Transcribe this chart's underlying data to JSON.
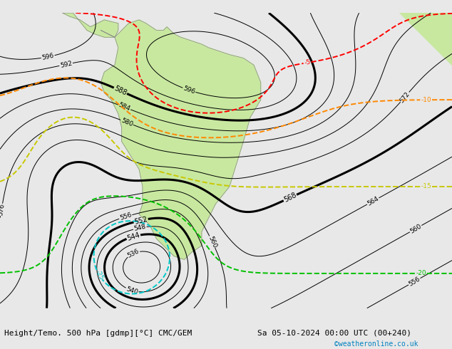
{
  "title_left": "Height/Temo. 500 hPa [gdmp][°C] CMC/GEM",
  "title_right": "Sa 05-10-2024 00:00 UTC (00+240)",
  "copyright": "©weatheronline.co.uk",
  "bg_color": "#e8e8e8",
  "land_color": "#c8e8a0",
  "text_color": "#000000",
  "copyright_color": "#0080c0",
  "bottom_bar_color": "#f0f0f0",
  "figure_width": 6.34,
  "figure_height": 4.9,
  "dpi": 100,
  "height_contour_color": "#000000",
  "temp_neg5_color": "#ff0000",
  "temp_neg10_color": "#ff8800",
  "temp_neg15_color": "#c8c800",
  "temp_neg20_color": "#00c000",
  "temp_neg25_color": "#00c8c8",
  "temp_neg30_color": "#0060ff",
  "temp_neg35_color": "#8000ff"
}
